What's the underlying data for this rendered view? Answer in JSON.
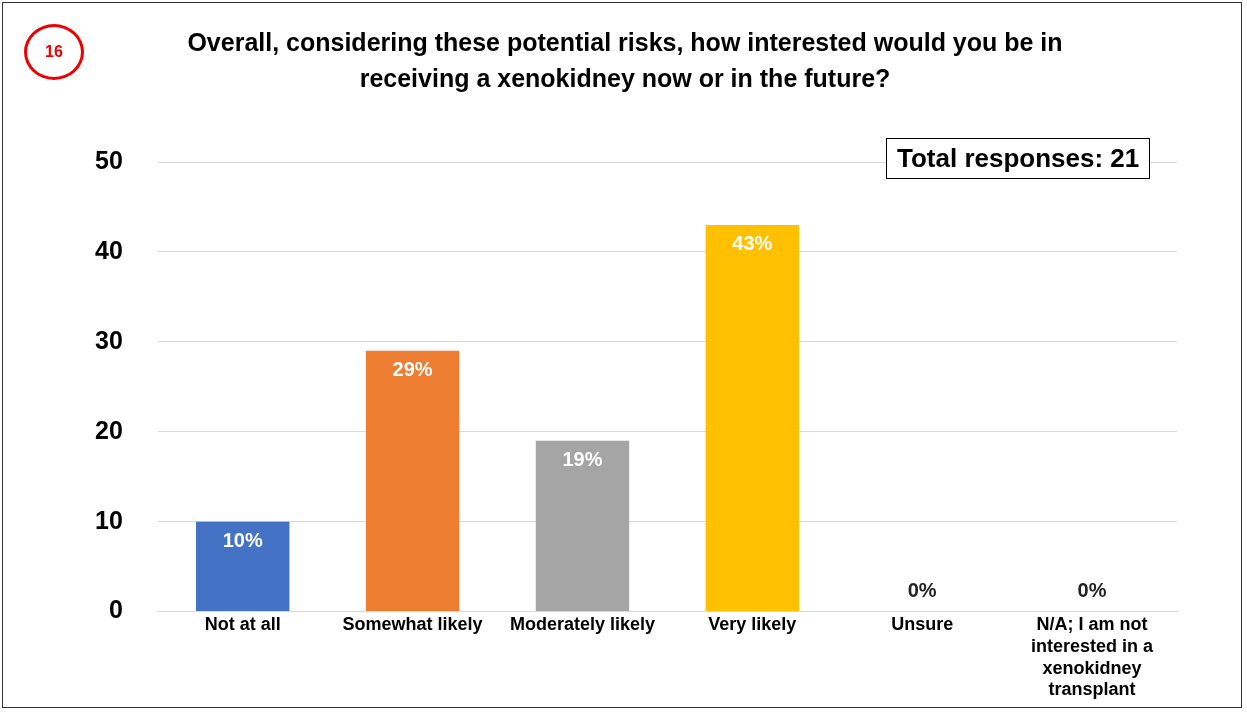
{
  "chart_data": {
    "type": "bar",
    "title": "Overall, considering these potential risks, how interested would you be in receiving a xenokidney now or in the future?",
    "categories": [
      "Not at all",
      "Somewhat likely",
      "Moderately likely",
      "Very likely",
      "Unsure",
      "N/A; I am not interested in a xenokidney transplant"
    ],
    "values": [
      10,
      29,
      19,
      43,
      0,
      0
    ],
    "colors": [
      "#4472c4",
      "#ed7d31",
      "#a5a5a5",
      "#ffc000",
      "#a5a5a5",
      "#a5a5a5"
    ],
    "value_labels": [
      "10%",
      "29%",
      "19%",
      "43%",
      "0%",
      "0%"
    ],
    "ylim": [
      0,
      50
    ],
    "yticks": [
      0,
      10,
      20,
      30,
      40,
      50
    ],
    "grid": "y",
    "legend": false,
    "annotations": [
      "16",
      "Total responses: 21"
    ]
  }
}
